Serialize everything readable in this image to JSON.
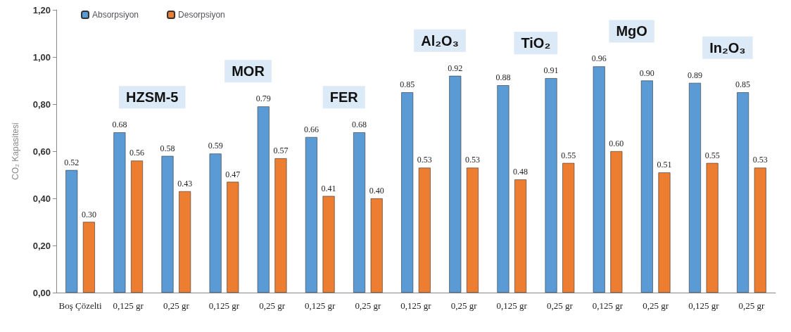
{
  "chart_data": {
    "type": "bar",
    "ylabel": "CO₂ Kapasitesi",
    "categories": [
      "Boş Çözelti",
      "0,125 gr",
      "0,25 gr",
      "0,125 gr",
      "0,25 gr",
      "0,125 gr",
      "0,25 gr",
      "0,125 gr",
      "0,25 gr",
      "0,125 gr",
      "0,25 gr",
      "0,125 gr",
      "0,25 gr",
      "0,125 gr",
      "0,25 gr"
    ],
    "series": [
      {
        "name": "Absorpsiyon",
        "color": "#5b9bd5",
        "values": [
          0.52,
          0.68,
          0.58,
          0.59,
          0.79,
          0.66,
          0.68,
          0.85,
          0.92,
          0.88,
          0.91,
          0.96,
          0.9,
          0.89,
          0.85
        ],
        "value_labels": [
          "0.52",
          "0.68",
          "0.58",
          "0.59",
          "0.79",
          "0.66",
          "0.68",
          "0.85",
          "0.92",
          "0.88",
          "0.91",
          "0.96",
          "0.90",
          "0.89",
          "0.85"
        ]
      },
      {
        "name": "Desorpsiyon",
        "color": "#ed7d31",
        "values": [
          0.3,
          0.56,
          0.43,
          0.47,
          0.57,
          0.41,
          0.4,
          0.53,
          0.53,
          0.48,
          0.55,
          0.6,
          0.51,
          0.55,
          0.53
        ],
        "value_labels": [
          "0.30",
          "0.56",
          "0.43",
          "0.47",
          "0.57",
          "0.41",
          "0.40",
          "0.53",
          "0.53",
          "0.48",
          "0.55",
          "0.60",
          "0.51",
          "0.55",
          "0.53"
        ]
      }
    ],
    "ylim": [
      0,
      1.2
    ],
    "yticks": [
      {
        "value": 0,
        "label": "0,00"
      },
      {
        "value": 0.2,
        "label": "0,20"
      },
      {
        "value": 0.4,
        "label": "0,40"
      },
      {
        "value": 0.6,
        "label": "0,60"
      },
      {
        "value": 0.8,
        "label": "0,80"
      },
      {
        "value": 1.0,
        "label": "1,00"
      },
      {
        "value": 1.2,
        "label": "1,20"
      }
    ],
    "annotations": [
      "HZSM-5",
      "MOR",
      "FER",
      "Al₂O₃",
      "TiO₂",
      "MgO",
      "In₂O₃"
    ],
    "legend": "top left",
    "grid": false
  }
}
